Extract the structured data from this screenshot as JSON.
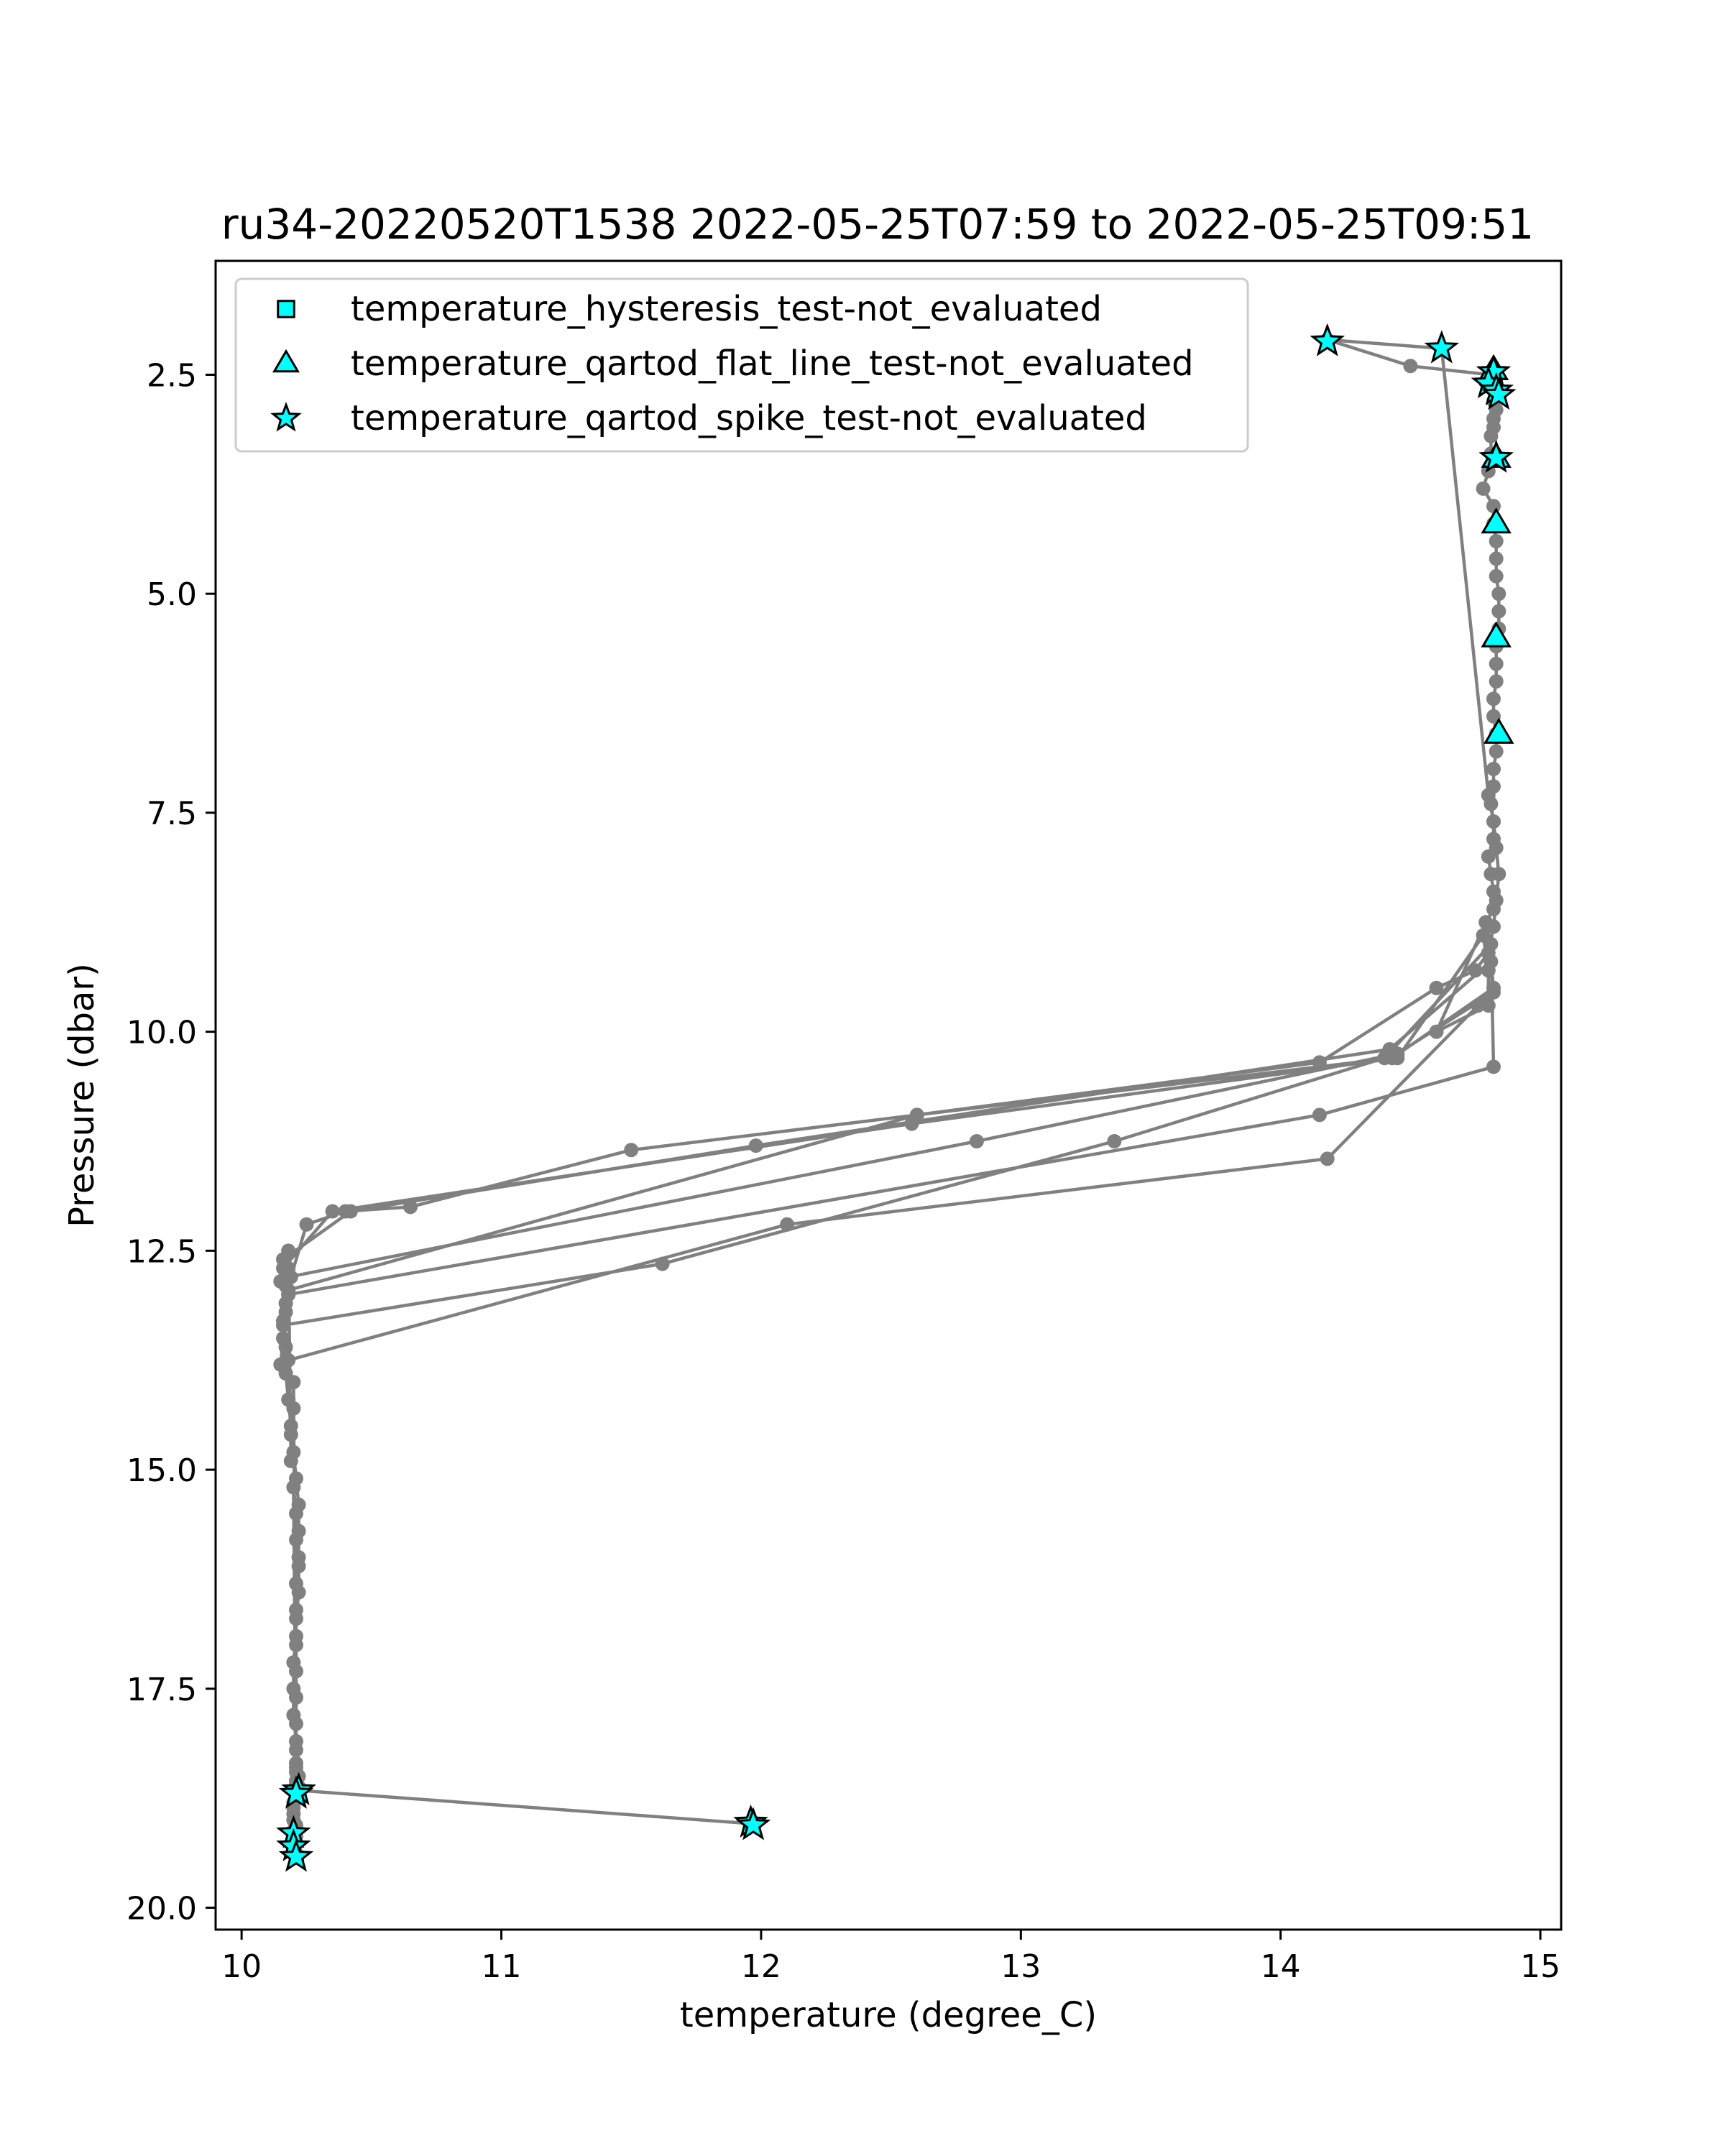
{
  "chart_data": {
    "type": "scatter",
    "title": "ru34-20220520T1538 2022-05-25T07:59 to 2022-05-25T09:51",
    "xlabel": "temperature (degree_C)",
    "ylabel": "Pressure (dbar)",
    "xlim": [
      9.9,
      15.08
    ],
    "ylim": [
      20.25,
      1.2
    ],
    "y_inverted": true,
    "xticks": [
      {
        "value": 10,
        "label": "10"
      },
      {
        "value": 11,
        "label": "11"
      },
      {
        "value": 12,
        "label": "12"
      },
      {
        "value": 13,
        "label": "13"
      },
      {
        "value": 14,
        "label": "14"
      },
      {
        "value": 15,
        "label": "15"
      }
    ],
    "yticks": [
      {
        "value": 2.5,
        "label": "2.5"
      },
      {
        "value": 5.0,
        "label": "5.0"
      },
      {
        "value": 7.5,
        "label": "7.5"
      },
      {
        "value": 10.0,
        "label": "10.0"
      },
      {
        "value": 12.5,
        "label": "12.5"
      },
      {
        "value": 15.0,
        "label": "15.0"
      },
      {
        "value": 17.5,
        "label": "17.5"
      },
      {
        "value": 20.0,
        "label": "20.0"
      }
    ],
    "grid": false,
    "legend_position": "upper-left",
    "profile_color": "#808080",
    "marker_fill": "#00ffff",
    "marker_edge": "#000000",
    "profile": {
      "x": [
        10.21,
        10.2,
        10.2,
        10.21,
        10.2,
        10.21,
        10.2,
        10.2,
        10.2,
        10.2,
        10.21,
        10.21,
        10.2,
        10.2,
        10.19,
        10.19,
        10.18,
        10.18,
        10.17,
        10.17,
        10.16,
        10.17,
        10.15,
        10.16,
        10.17,
        10.18,
        10.19,
        10.25,
        10.4,
        10.65,
        11.5,
        12.6,
        14.15,
        14.6,
        14.75,
        14.8,
        14.82,
        14.83,
        14.84,
        14.83,
        14.82,
        14.8,
        14.62,
        14.18,
        14.5,
        14.81,
        14.83,
        14.83,
        14.82,
        14.83,
        14.82,
        14.82,
        14.81,
        14.81,
        14.8,
        14.78,
        14.82,
        14.82,
        14.83,
        14.83,
        14.83,
        14.84,
        14.84,
        14.84,
        14.83,
        14.83,
        14.83,
        14.82,
        14.82,
        14.83,
        14.83,
        14.82,
        14.82,
        14.81,
        14.82,
        14.82,
        14.8,
        14.81,
        14.82,
        14.82,
        14.79,
        14.6,
        14.8,
        14.8,
        14.78,
        14.45,
        12.58,
        10.35,
        10.16,
        10.15,
        10.17,
        10.18,
        12.6,
        14.43,
        14.82,
        14.81,
        14.42,
        11.98,
        10.42,
        10.16,
        10.17,
        10.18,
        14.15,
        14.82,
        14.81,
        14.4,
        13.36,
        11.62,
        10.16,
        10.18,
        10.18,
        12.83,
        14.45,
        14.82,
        14.76,
        14.18,
        12.1,
        10.18,
        10.17,
        10.18,
        10.19,
        10.2,
        10.21,
        10.22,
        10.22,
        10.22,
        10.21,
        10.21,
        10.21,
        10.2,
        10.2,
        10.2,
        10.21,
        10.21,
        10.21,
        10.2,
        10.21,
        10.21,
        10.22,
        10.22,
        10.21,
        10.21,
        10.21,
        10.21,
        10.21,
        10.21,
        10.22,
        10.21,
        10.21,
        10.21,
        10.21,
        10.22,
        10.22,
        10.22,
        11.96
      ],
      "y": [
        19.38,
        19.33,
        19.25,
        19.19,
        19.12,
        19.06,
        19.0,
        18.93,
        18.86,
        18.8,
        18.72,
        18.66,
        14.0,
        14.3,
        14.6,
        14.9,
        12.5,
        12.7,
        12.9,
        13.1,
        13.3,
        13.6,
        13.8,
        13.5,
        13.2,
        13.0,
        12.8,
        12.2,
        12.05,
        12.0,
        11.35,
        10.95,
        10.35,
        9.5,
        9.3,
        9.1,
        8.8,
        8.5,
        8.2,
        7.9,
        7.6,
        7.3,
        2.2,
        2.1,
        2.4,
        2.5,
        2.6,
        2.7,
        2.8,
        2.9,
        3.0,
        3.1,
        3.2,
        3.4,
        3.6,
        3.8,
        4.0,
        4.2,
        4.4,
        4.6,
        4.8,
        5.0,
        5.2,
        5.4,
        5.6,
        5.8,
        6.0,
        6.2,
        6.4,
        6.6,
        6.8,
        7.0,
        7.2,
        7.4,
        7.6,
        7.8,
        8.0,
        8.2,
        8.4,
        8.6,
        8.75,
        10.0,
        9.7,
        9.3,
        8.9,
        10.3,
        11.05,
        12.05,
        12.7,
        12.85,
        12.9,
        12.95,
        10.95,
        10.3,
        9.5,
        9.2,
        10.2,
        11.3,
        12.05,
        12.6,
        12.8,
        13.0,
        10.95,
        10.4,
        9.0,
        10.3,
        11.25,
        12.65,
        13.35,
        13.0,
        12.8,
        11.25,
        10.25,
        9.55,
        9.7,
        11.45,
        12.2,
        13.75,
        13.9,
        14.2,
        14.5,
        14.8,
        15.1,
        15.4,
        15.7,
        16.0,
        16.3,
        16.6,
        16.9,
        17.2,
        17.5,
        17.8,
        18.1,
        18.4,
        18.6,
        15.2,
        15.5,
        15.8,
        16.1,
        16.4,
        16.7,
        17.0,
        17.3,
        17.6,
        17.9,
        18.2,
        18.5,
        18.64,
        18.55,
        18.45,
        18.35,
        18.62,
        18.68,
        18.66,
        19.04
      ]
    },
    "series": [
      {
        "name": "temperature_hysteresis_test-not_evaluated",
        "marker": "square",
        "x": [],
        "y": []
      },
      {
        "name": "temperature_qartod_flat_line_test-not_evaluated",
        "marker": "triangle",
        "x": [
          14.82,
          14.83,
          14.83,
          14.83,
          14.84
        ],
        "y": [
          2.45,
          3.45,
          4.2,
          5.5,
          6.6
        ]
      },
      {
        "name": "temperature_qartod_spike_test-not_evaluated",
        "marker": "star",
        "x": [
          14.18,
          14.62,
          14.82,
          14.8,
          14.83,
          14.84,
          14.83,
          10.22,
          10.21,
          10.2,
          10.2,
          10.21,
          11.96,
          11.97
        ],
        "y": [
          2.12,
          2.2,
          2.47,
          2.6,
          2.68,
          2.73,
          3.45,
          18.66,
          18.7,
          19.15,
          19.3,
          19.42,
          19.03,
          19.06
        ]
      }
    ]
  }
}
